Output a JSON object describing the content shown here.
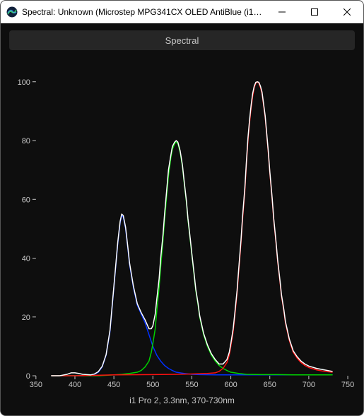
{
  "window": {
    "title": "Spectral: Unknown (Microstep MPG341CX OLED AntiBlue (i1 Pr…",
    "background": "#0e0e0e",
    "titlebar_bg": "#ffffff",
    "titlebar_fg": "#000000"
  },
  "tab": {
    "label": "Spectral",
    "bg": "#262626",
    "fg": "#c8c8c8"
  },
  "footer": {
    "label": "i1 Pro 2, 3.3nm, 370-730nm",
    "color": "#c8c8c8"
  },
  "chart": {
    "type": "line",
    "background": "#0e0e0e",
    "axis_color": "#c8c8c8",
    "tick_fontsize": 11,
    "xlim": [
      350,
      750
    ],
    "ylim": [
      0,
      105
    ],
    "xticks": [
      350,
      400,
      450,
      500,
      550,
      600,
      650,
      700,
      750
    ],
    "yticks": [
      0,
      20,
      40,
      60,
      80,
      100
    ],
    "line_width": 1.5,
    "series": [
      {
        "name": "blue",
        "color": "#0030ff",
        "points": [
          [
            370,
            0
          ],
          [
            380,
            0
          ],
          [
            390,
            0
          ],
          [
            400,
            0
          ],
          [
            410,
            0
          ],
          [
            420,
            0.2
          ],
          [
            425,
            0.5
          ],
          [
            430,
            1.2
          ],
          [
            435,
            3
          ],
          [
            440,
            7
          ],
          [
            445,
            15
          ],
          [
            450,
            30
          ],
          [
            455,
            45
          ],
          [
            458,
            52
          ],
          [
            460,
            54.5
          ],
          [
            462,
            54
          ],
          [
            465,
            50
          ],
          [
            468,
            43
          ],
          [
            470,
            38
          ],
          [
            475,
            30
          ],
          [
            480,
            24
          ],
          [
            485,
            21
          ],
          [
            490,
            18
          ],
          [
            495,
            14
          ],
          [
            500,
            10
          ],
          [
            505,
            7
          ],
          [
            510,
            5
          ],
          [
            515,
            3.5
          ],
          [
            520,
            2.5
          ],
          [
            525,
            1.8
          ],
          [
            530,
            1.2
          ],
          [
            540,
            0.8
          ],
          [
            550,
            0.5
          ],
          [
            560,
            0.4
          ],
          [
            580,
            0.3
          ],
          [
            600,
            0.3
          ],
          [
            620,
            0.3
          ],
          [
            650,
            0.3
          ],
          [
            680,
            0.3
          ],
          [
            700,
            0.3
          ],
          [
            730,
            0.3
          ]
        ]
      },
      {
        "name": "green",
        "color": "#00d000",
        "points": [
          [
            370,
            0
          ],
          [
            400,
            0
          ],
          [
            430,
            0
          ],
          [
            450,
            0.3
          ],
          [
            460,
            0.5
          ],
          [
            470,
            0.8
          ],
          [
            480,
            1.2
          ],
          [
            485,
            1.8
          ],
          [
            490,
            3
          ],
          [
            495,
            5
          ],
          [
            498,
            8
          ],
          [
            500,
            11
          ],
          [
            503,
            16
          ],
          [
            505,
            22
          ],
          [
            508,
            30
          ],
          [
            510,
            37
          ],
          [
            513,
            46
          ],
          [
            515,
            53
          ],
          [
            518,
            62
          ],
          [
            520,
            68
          ],
          [
            523,
            74
          ],
          [
            525,
            77
          ],
          [
            528,
            79
          ],
          [
            530,
            79.5
          ],
          [
            532,
            79
          ],
          [
            535,
            76
          ],
          [
            538,
            71
          ],
          [
            540,
            66
          ],
          [
            543,
            59
          ],
          [
            545,
            53
          ],
          [
            548,
            46
          ],
          [
            550,
            41
          ],
          [
            553,
            34
          ],
          [
            555,
            29
          ],
          [
            558,
            24
          ],
          [
            560,
            20
          ],
          [
            565,
            14
          ],
          [
            570,
            10
          ],
          [
            575,
            7
          ],
          [
            580,
            5
          ],
          [
            585,
            3.5
          ],
          [
            590,
            2.5
          ],
          [
            595,
            1.8
          ],
          [
            600,
            1.2
          ],
          [
            610,
            0.8
          ],
          [
            620,
            0.5
          ],
          [
            640,
            0.4
          ],
          [
            660,
            0.4
          ],
          [
            680,
            0.3
          ],
          [
            700,
            0.3
          ],
          [
            730,
            0.3
          ]
        ]
      },
      {
        "name": "red",
        "color": "#ff1010",
        "points": [
          [
            370,
            0
          ],
          [
            400,
            0
          ],
          [
            450,
            0.3
          ],
          [
            500,
            0.4
          ],
          [
            530,
            0.5
          ],
          [
            550,
            0.6
          ],
          [
            560,
            0.7
          ],
          [
            570,
            0.8
          ],
          [
            580,
            1
          ],
          [
            585,
            1.5
          ],
          [
            590,
            2.5
          ],
          [
            595,
            4.5
          ],
          [
            598,
            7
          ],
          [
            600,
            10
          ],
          [
            603,
            15
          ],
          [
            605,
            20
          ],
          [
            608,
            28
          ],
          [
            610,
            35
          ],
          [
            613,
            45
          ],
          [
            615,
            53
          ],
          [
            618,
            63
          ],
          [
            620,
            72
          ],
          [
            622,
            80
          ],
          [
            624,
            86
          ],
          [
            626,
            91
          ],
          [
            628,
            95
          ],
          [
            630,
            98
          ],
          [
            632,
            99.5
          ],
          [
            634,
            100
          ],
          [
            636,
            99.5
          ],
          [
            638,
            98
          ],
          [
            640,
            96
          ],
          [
            642,
            92
          ],
          [
            644,
            88
          ],
          [
            646,
            82
          ],
          [
            648,
            76
          ],
          [
            650,
            69
          ],
          [
            653,
            60
          ],
          [
            655,
            53
          ],
          [
            658,
            45
          ],
          [
            660,
            39
          ],
          [
            663,
            32
          ],
          [
            665,
            27
          ],
          [
            668,
            22
          ],
          [
            670,
            18
          ],
          [
            675,
            12
          ],
          [
            680,
            8
          ],
          [
            685,
            6
          ],
          [
            690,
            4.5
          ],
          [
            695,
            3.5
          ],
          [
            700,
            2.8
          ],
          [
            710,
            2
          ],
          [
            720,
            1.5
          ],
          [
            730,
            1.2
          ]
        ]
      },
      {
        "name": "white",
        "color": "#ffffff",
        "points": [
          [
            370,
            0
          ],
          [
            380,
            0
          ],
          [
            390,
            0.5
          ],
          [
            395,
            1
          ],
          [
            400,
            1
          ],
          [
            405,
            0.8
          ],
          [
            410,
            0.5
          ],
          [
            420,
            0.3
          ],
          [
            425,
            0.6
          ],
          [
            430,
            1.4
          ],
          [
            435,
            3.2
          ],
          [
            440,
            7.2
          ],
          [
            445,
            15.5
          ],
          [
            450,
            30.5
          ],
          [
            455,
            45.5
          ],
          [
            458,
            52.5
          ],
          [
            460,
            55
          ],
          [
            462,
            54.5
          ],
          [
            465,
            50.5
          ],
          [
            468,
            43.5
          ],
          [
            470,
            38.5
          ],
          [
            475,
            30.5
          ],
          [
            480,
            24.5
          ],
          [
            485,
            21.5
          ],
          [
            490,
            19
          ],
          [
            495,
            16
          ],
          [
            498,
            16
          ],
          [
            500,
            17
          ],
          [
            503,
            21
          ],
          [
            505,
            26
          ],
          [
            508,
            33
          ],
          [
            510,
            40
          ],
          [
            513,
            48
          ],
          [
            515,
            55
          ],
          [
            518,
            64
          ],
          [
            520,
            70
          ],
          [
            523,
            75
          ],
          [
            525,
            78
          ],
          [
            528,
            79.5
          ],
          [
            530,
            80
          ],
          [
            532,
            79.5
          ],
          [
            535,
            76.5
          ],
          [
            538,
            71.5
          ],
          [
            540,
            66.5
          ],
          [
            543,
            59.5
          ],
          [
            545,
            53.5
          ],
          [
            548,
            46.5
          ],
          [
            550,
            41.5
          ],
          [
            553,
            34.5
          ],
          [
            555,
            29.5
          ],
          [
            558,
            24.5
          ],
          [
            560,
            20.5
          ],
          [
            565,
            14.5
          ],
          [
            570,
            10.5
          ],
          [
            575,
            7.5
          ],
          [
            580,
            5.5
          ],
          [
            585,
            4
          ],
          [
            590,
            4
          ],
          [
            595,
            5.5
          ],
          [
            598,
            8
          ],
          [
            600,
            11
          ],
          [
            603,
            16
          ],
          [
            605,
            21
          ],
          [
            608,
            29
          ],
          [
            610,
            36
          ],
          [
            613,
            46
          ],
          [
            615,
            54
          ],
          [
            618,
            64
          ],
          [
            620,
            73
          ],
          [
            622,
            81
          ],
          [
            624,
            87
          ],
          [
            626,
            92
          ],
          [
            628,
            96
          ],
          [
            630,
            98.5
          ],
          [
            632,
            99.8
          ],
          [
            634,
            100
          ],
          [
            636,
            99.8
          ],
          [
            638,
            98.5
          ],
          [
            640,
            96.5
          ],
          [
            642,
            92.5
          ],
          [
            644,
            88.5
          ],
          [
            646,
            82.5
          ],
          [
            648,
            76.5
          ],
          [
            650,
            69.5
          ],
          [
            653,
            60.5
          ],
          [
            655,
            53.5
          ],
          [
            658,
            45.5
          ],
          [
            660,
            39.5
          ],
          [
            663,
            32.5
          ],
          [
            665,
            27.5
          ],
          [
            668,
            22.5
          ],
          [
            670,
            18.5
          ],
          [
            675,
            12.5
          ],
          [
            680,
            8.5
          ],
          [
            685,
            6.5
          ],
          [
            690,
            5
          ],
          [
            695,
            4
          ],
          [
            700,
            3.3
          ],
          [
            710,
            2.5
          ],
          [
            720,
            2
          ],
          [
            730,
            1.5
          ]
        ]
      }
    ]
  }
}
